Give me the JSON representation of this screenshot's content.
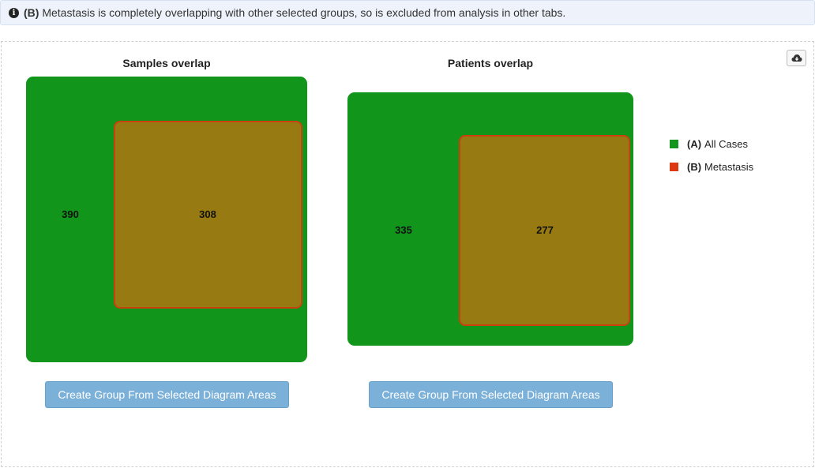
{
  "info": {
    "prefix": "(B)",
    "message": "Metastasis is completely overlapping with other selected groups, so is excluded from analysis in other tabs."
  },
  "charts": {
    "samples": {
      "title": "Samples overlap",
      "a_only": "390",
      "overlap": "308",
      "button_label": "Create Group From Selected Diagram Areas"
    },
    "patients": {
      "title": "Patients overlap",
      "a_only": "335",
      "overlap": "277",
      "button_label": "Create Group From Selected Diagram Areas"
    }
  },
  "legend": {
    "items": [
      {
        "key": "(A)",
        "label": "All Cases",
        "color": "#11951b"
      },
      {
        "key": "(B)",
        "label": "Metastasis",
        "color": "#dc3912"
      }
    ]
  },
  "icons": {
    "info": "info-circle-icon",
    "download": "cloud-download-icon"
  }
}
